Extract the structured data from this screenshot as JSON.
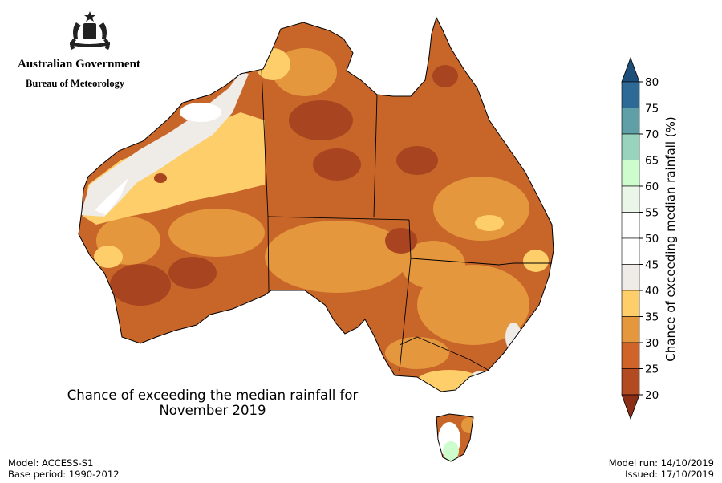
{
  "header": {
    "government": "Australian Government",
    "agency": "Bureau of Meteorology"
  },
  "map": {
    "title_line1": "Chance of exceeding the median rainfall for",
    "title_line2": "November 2019",
    "region": "Australia"
  },
  "colorbar": {
    "title": "Chance of exceeding median rainfall (%)",
    "ticks": [
      "80",
      "75",
      "70",
      "65",
      "60",
      "55",
      "50",
      "45",
      "40",
      "35",
      "30",
      "25",
      "20"
    ],
    "colors": [
      "#2d6a96",
      "#5f9fa6",
      "#97d3bd",
      "#cdfccd",
      "#eaf6e7",
      "#ffffff",
      "#ffffff",
      "#efebe7",
      "#fdce6a",
      "#e4973d",
      "#cf6328",
      "#b24a22"
    ],
    "over_color": "#1e4f7a",
    "under_color": "#8a2e16"
  },
  "footer": {
    "model": "Model: ACCESS-S1",
    "base_period": "Base period: 1990-2012",
    "model_run": "Model run: 14/10/2019",
    "issued": "Issued: 17/10/2019"
  }
}
